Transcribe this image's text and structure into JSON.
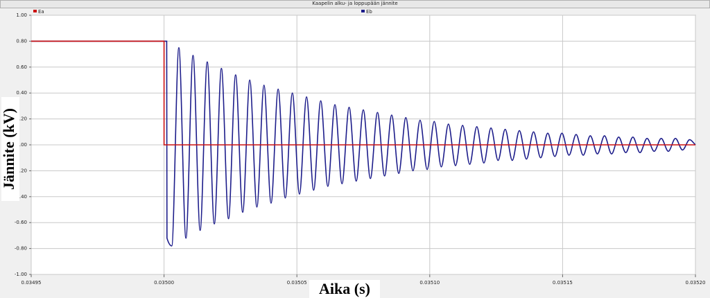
{
  "chart_data": {
    "type": "line",
    "title": "Kaapelin alku- ja loppupään jännite",
    "x_label": "Aika (s)",
    "y_label": "Jännite (kV)",
    "legend": "top",
    "grid": true,
    "xlim": [
      0.03495,
      0.0352
    ],
    "ylim": [
      -1,
      1
    ],
    "xticks": [
      0.03495,
      {
        "value": 0.035,
        "label": "0.03500"
      },
      0.03505,
      {
        "value": 0.0351,
        "label": "0.03510"
      },
      0.03515,
      {
        "value": 0.0352,
        "label": "0.03520"
      }
    ],
    "yticks": [
      {
        "value": 1,
        "label": "1.00"
      },
      {
        "value": 0.8,
        "label": "0.80"
      },
      {
        "value": 0.6,
        "label": "0.60"
      },
      {
        "value": 0.4,
        "label": "0.40"
      },
      {
        "value": 0.2,
        "label": "0.20"
      },
      {
        "value": 0,
        "label": "0.00"
      },
      {
        "value": -0.2,
        "label": "-0.20"
      },
      {
        "value": -0.4,
        "label": "-0.40"
      },
      {
        "value": -0.6,
        "label": "-0.60"
      },
      {
        "value": -0.8,
        "label": "-0.80"
      },
      {
        "value": -1,
        "label": "-1.00"
      }
    ],
    "series": [
      {
        "name": "Ea",
        "color": "#cc1010",
        "x": [
          0.03495,
          0.035,
          0.035,
          0.0352
        ],
        "values": [
          0.8,
          0.8,
          0,
          0
        ]
      },
      {
        "name": "Eb",
        "color": "#1c1c8a",
        "x": [
          0.03495,
          0.035001,
          0.0350011,
          0.0350029,
          0.03500557,
          0.03500824,
          0.03501091,
          0.03501358,
          0.03501625,
          0.03501892,
          0.03502159,
          0.03502426,
          0.03502693,
          0.0350296,
          0.03503227,
          0.03503494,
          0.03503761,
          0.03504028,
          0.03504295,
          0.03504562,
          0.03504829,
          0.03505096,
          0.03505363,
          0.0350563,
          0.03505897,
          0.03506164,
          0.03506431,
          0.03506698,
          0.03506965,
          0.03507232,
          0.03507499,
          0.03507766,
          0.03508033,
          0.035083,
          0.03508567,
          0.03508834,
          0.03509101,
          0.03509368,
          0.03509635,
          0.03509902,
          0.03510169,
          0.03510436,
          0.03510703,
          0.0351097,
          0.03511237,
          0.03511504,
          0.03511771,
          0.03512038,
          0.03512305,
          0.03512572,
          0.03512839,
          0.03513106,
          0.03513373,
          0.0351364,
          0.03513907,
          0.03514174,
          0.03514441,
          0.03514708,
          0.03514975,
          0.03515242,
          0.03515509,
          0.03515776,
          0.03516043,
          0.0351631,
          0.03516577,
          0.03516844,
          0.03517111,
          0.03517378,
          0.03517645,
          0.03517912,
          0.03518179,
          0.03518446,
          0.03518713,
          0.0351898,
          0.03519247,
          0.03519514,
          0.03519781,
          0.0352
        ],
        "values": [
          0.8,
          0.8,
          -0.72,
          -0.78,
          0.75,
          -0.72,
          0.69,
          -0.66,
          0.64,
          -0.61,
          0.59,
          -0.57,
          0.54,
          -0.52,
          0.5,
          -0.48,
          0.46,
          -0.45,
          0.43,
          -0.41,
          0.4,
          -0.38,
          0.37,
          -0.35,
          0.34,
          -0.32,
          0.31,
          -0.3,
          0.29,
          -0.28,
          0.27,
          -0.26,
          0.25,
          -0.24,
          0.23,
          -0.22,
          0.21,
          -0.2,
          0.19,
          -0.19,
          0.18,
          -0.17,
          0.16,
          -0.16,
          0.15,
          -0.15,
          0.14,
          -0.14,
          0.13,
          -0.12,
          0.12,
          -0.12,
          0.11,
          -0.11,
          0.1,
          -0.1,
          0.09,
          -0.09,
          0.09,
          -0.08,
          0.08,
          -0.08,
          0.07,
          -0.07,
          0.07,
          -0.07,
          0.06,
          -0.06,
          0.06,
          -0.06,
          0.05,
          -0.05,
          0.05,
          -0.05,
          0.05,
          -0.04,
          0.04,
          0
        ]
      }
    ]
  }
}
